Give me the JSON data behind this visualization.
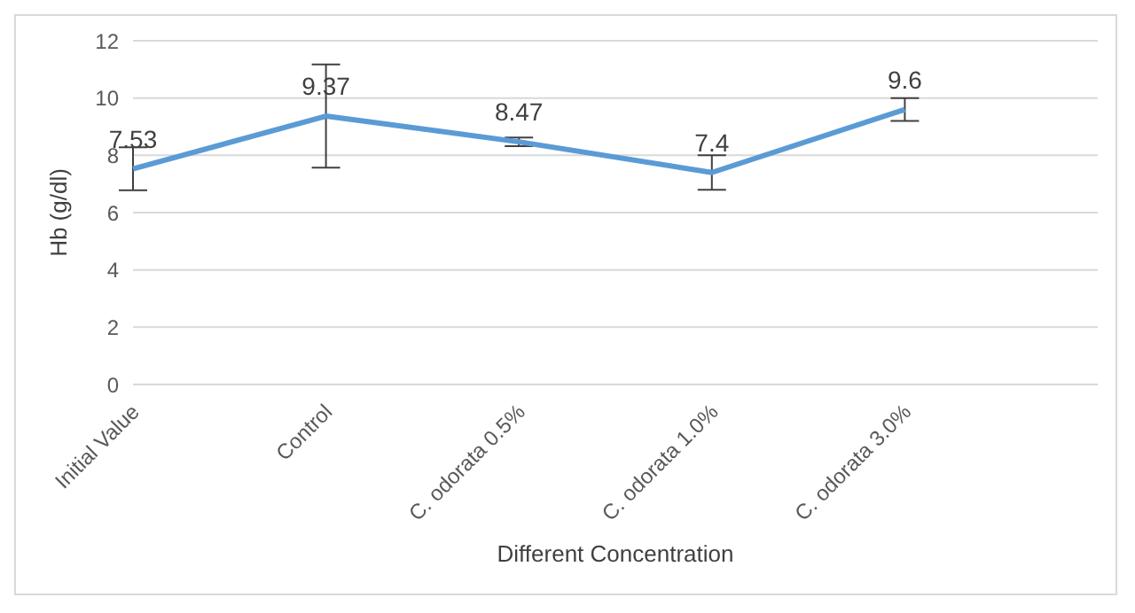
{
  "chart_data": {
    "type": "line",
    "xlabel": "Different Concentration",
    "ylabel": "Hb (g/dl)",
    "categories": [
      "Initial Value",
      "Control",
      "C. odorata 0.5%",
      "C. odorata 1.0%",
      "C. odorata 3.0%",
      null
    ],
    "series": [
      {
        "color": "#5b9bd5",
        "values": [
          7.53,
          9.37,
          8.47,
          7.4,
          9.6,
          null
        ],
        "errors": [
          0.75,
          1.8,
          0.15,
          0.6,
          0.4,
          null
        ]
      }
    ],
    "ylim": [
      0,
      12
    ],
    "yticks": [
      0,
      2,
      4,
      6,
      8,
      10,
      12
    ],
    "grid": "y",
    "marker": "none",
    "line_style": "solid",
    "data_labels": true
  }
}
